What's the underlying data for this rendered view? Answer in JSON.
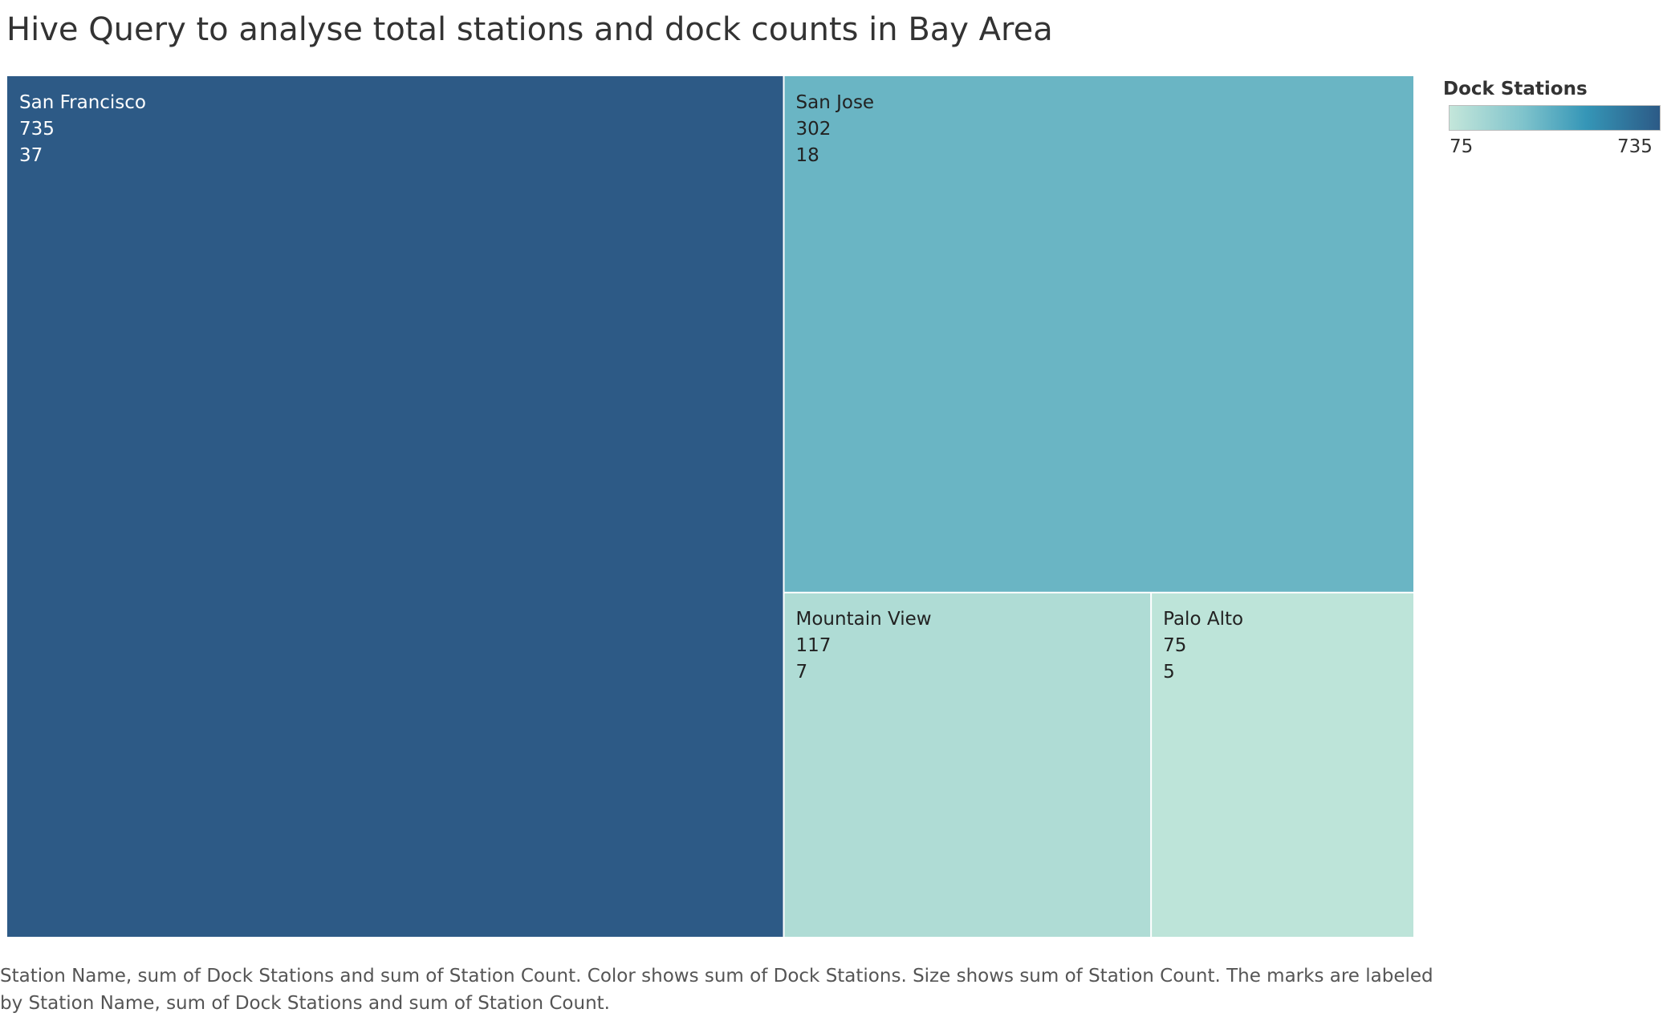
{
  "title": "Hive Query to analyse total stations and dock counts in Bay Area",
  "legend": {
    "title": "Dock Stations",
    "min_label": "75",
    "max_label": "735",
    "min_color": "#c4e6da",
    "max_color": "#2c5a86"
  },
  "footer": "Station Name, sum of Dock Stations and sum of Station Count.  Color shows sum of Dock Stations.  Size shows sum of Station Count.  The marks are labeled by Station Name, sum of Dock Stations and sum of Station Count.",
  "chart_data": {
    "type": "treemap",
    "size_field": "Station Count",
    "color_field": "Dock Stations",
    "nodes": [
      {
        "name": "San Francisco",
        "dock_stations": 735,
        "station_count": 37,
        "color": "#2d5a86"
      },
      {
        "name": "San Jose",
        "dock_stations": 302,
        "station_count": 18,
        "color": "#6ab5c4"
      },
      {
        "name": "Mountain View",
        "dock_stations": 117,
        "station_count": 7,
        "color": "#afdcd5"
      },
      {
        "name": "Palo Alto",
        "dock_stations": 75,
        "station_count": 5,
        "color": "#bde4d9"
      }
    ]
  }
}
